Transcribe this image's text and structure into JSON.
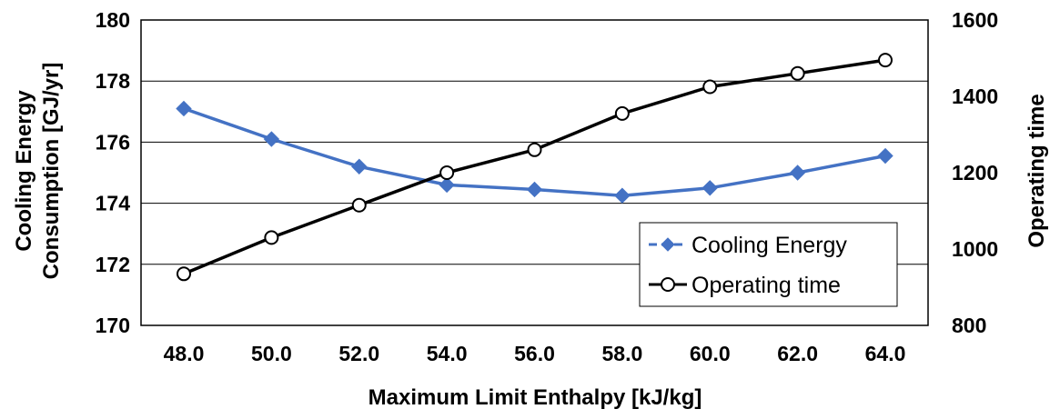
{
  "chart_data": {
    "type": "line",
    "x": [
      48.0,
      50.0,
      52.0,
      54.0,
      56.0,
      58.0,
      60.0,
      62.0,
      64.0
    ],
    "x_tick_labels": [
      "48.0",
      "50.0",
      "52.0",
      "54.0",
      "56.0",
      "58.0",
      "60.0",
      "62.0",
      "64.0"
    ],
    "xlabel": "Maximum Limit Enthalpy [kJ/kg]",
    "ylabel_lines": [
      "Cooling Energy",
      "Consumption [GJ/yr]"
    ],
    "ylim": [
      170,
      180
    ],
    "y_ticks": [
      170,
      172,
      174,
      176,
      178,
      180
    ],
    "y2label": "Operating time",
    "y2lim": [
      800,
      1600
    ],
    "y2_ticks": [
      800,
      1000,
      1200,
      1400,
      1600
    ],
    "grid": true,
    "legend_position": "bottom-right",
    "series": [
      {
        "name": "Cooling Energy",
        "axis": "left",
        "color": "#4472C4",
        "marker": "diamond",
        "values": [
          177.1,
          176.1,
          175.2,
          174.6,
          174.45,
          174.25,
          174.5,
          175.0,
          175.55
        ]
      },
      {
        "name": "Operating time",
        "axis": "right",
        "color": "#000000",
        "marker": "circle-open",
        "values": [
          935,
          1030,
          1115,
          1200,
          1260,
          1355,
          1425,
          1460,
          1495
        ]
      }
    ]
  }
}
